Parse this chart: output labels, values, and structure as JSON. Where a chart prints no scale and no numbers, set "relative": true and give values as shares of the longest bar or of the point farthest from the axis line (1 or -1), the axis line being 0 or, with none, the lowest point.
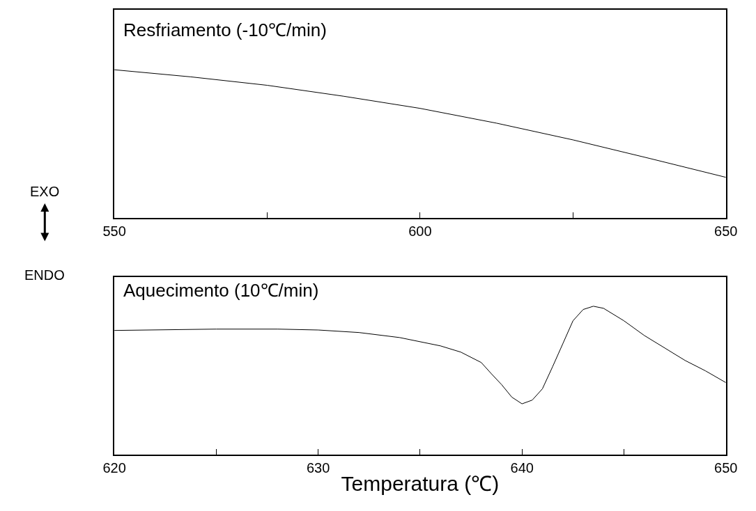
{
  "chart_data": [
    {
      "type": "line",
      "relative": true,
      "annotations": [
        "Resfriamento (-10℃/min)",
        "EXO"
      ],
      "xlim": [
        550,
        650
      ],
      "xticks": [
        550,
        {
          "value": 575,
          "label": null
        },
        600,
        {
          "value": 625,
          "label": null
        },
        650
      ],
      "tick_labels": "x",
      "x": [
        550,
        562.5,
        575,
        587.5,
        600,
        612.5,
        625,
        637.5,
        650
      ],
      "series": [
        {
          "color": "#000000",
          "values": [
            1,
            0.952,
            0.895,
            0.821,
            0.739,
            0.639,
            0.526,
            0.401,
            0.273
          ]
        }
      ]
    },
    {
      "type": "line",
      "relative": true,
      "annotations": [
        "Aquecimento (10℃/min)",
        "ENDO"
      ],
      "xlabel": "Temperatura (℃)",
      "xlim": [
        620,
        650
      ],
      "xticks": [
        620,
        {
          "value": 625,
          "label": null
        },
        630,
        {
          "value": 635,
          "label": null
        },
        640,
        {
          "value": 645,
          "label": null
        },
        650
      ],
      "tick_labels": "x",
      "x": [
        620,
        625,
        628,
        630,
        632,
        634,
        636,
        637,
        638,
        638.5,
        639,
        639.5,
        640,
        640.5,
        641,
        641.5,
        642,
        642.5,
        643,
        643.5,
        644,
        645,
        646,
        647,
        648,
        649,
        650
      ],
      "series": [
        {
          "color": "#000000",
          "values": [
            0.837,
            0.846,
            0.846,
            0.84,
            0.823,
            0.789,
            0.733,
            0.691,
            0.621,
            0.545,
            0.472,
            0.388,
            0.343,
            0.368,
            0.444,
            0.593,
            0.747,
            0.902,
            0.978,
            1,
            0.986,
            0.902,
            0.803,
            0.719,
            0.635,
            0.565,
            0.486
          ]
        }
      ]
    }
  ]
}
